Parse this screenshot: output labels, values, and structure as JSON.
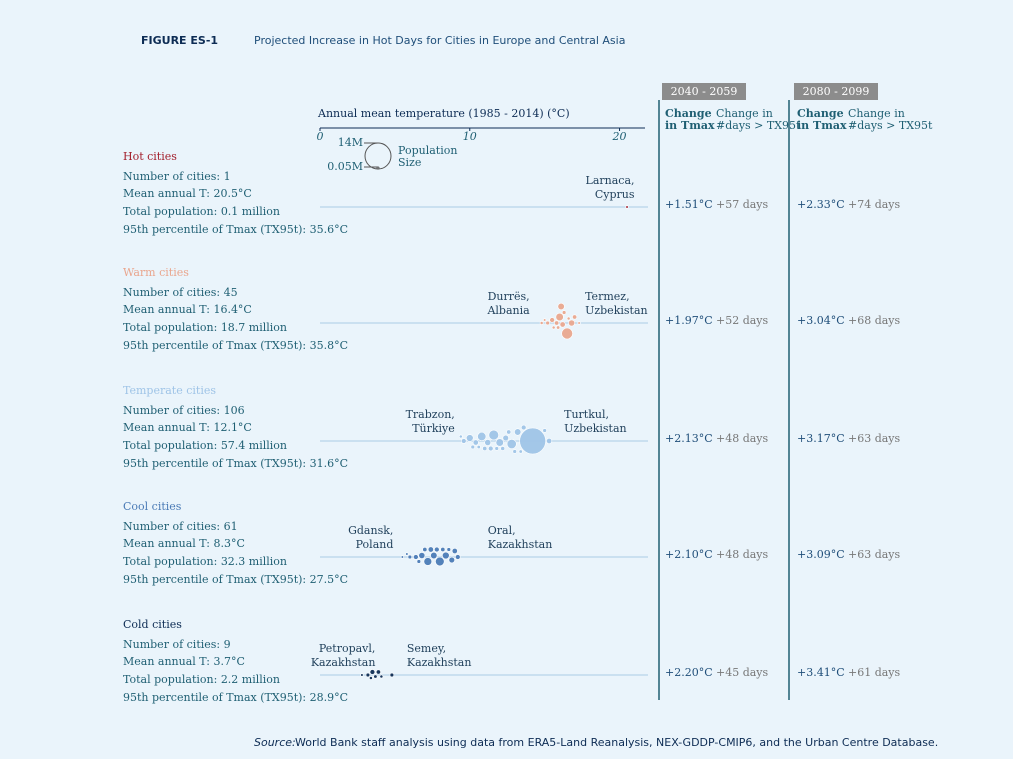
{
  "chart_data": {
    "type": "beeswarm",
    "title": "FIGURE ES-1",
    "subtitle": "Projected Increase in Hot Days for Cities in Europe and Central Asia",
    "x_label": "Annual mean temperature (1985 - 2014) (°C)",
    "xlim": [
      0,
      21.7
    ],
    "xticks": [
      0,
      10,
      20
    ],
    "size_legend": {
      "title": [
        "Population",
        "Size"
      ],
      "values": [
        14,
        0.05
      ],
      "labels": [
        "14M",
        "0.05M"
      ]
    },
    "periods": [
      "2040 - 2059",
      "2080 - 2099"
    ],
    "column_headers": [
      [
        "Change",
        "in Tmax"
      ],
      [
        "Change in",
        "#days > TX95t"
      ]
    ],
    "groups": [
      {
        "name": "Hot cities",
        "color": "#a3202d",
        "stats": [
          "Number of cities: 1",
          "Mean annual T: 20.5°C",
          "Total population: 0.1 million",
          "95th percentile of Tmax (TX95t): 35.6°C"
        ],
        "annotations": [
          {
            "label": [
              "Larnaca,",
              "Cyprus"
            ],
            "x": 21.0
          }
        ],
        "points": [
          {
            "x": 20.5,
            "size": 0.1
          }
        ],
        "changes": [
          [
            "+1.51°C",
            "+57 days"
          ],
          [
            "+2.33°C",
            "+74 days"
          ]
        ]
      },
      {
        "name": "Warm cities",
        "color": "#e9a68e",
        "stats": [
          "Number of cities: 45",
          "Mean annual T: 16.4°C",
          "Total population: 18.7 million",
          "95th percentile of Tmax (TX95t): 35.8°C"
        ],
        "annotations": [
          {
            "label": [
              "Durrës,",
              "Albania"
            ],
            "x": 14.0
          },
          {
            "label": [
              "Termez,",
              "Uzbekistan"
            ],
            "x": 17.7
          }
        ],
        "points": [
          {
            "x": 14.8,
            "size": 0.2
          },
          {
            "x": 15.2,
            "size": 0.3
          },
          {
            "x": 15.5,
            "size": 0.5
          },
          {
            "x": 15.8,
            "size": 0.4
          },
          {
            "x": 16.0,
            "size": 1.2
          },
          {
            "x": 16.2,
            "size": 0.6
          },
          {
            "x": 16.5,
            "size": 2.5
          },
          {
            "x": 16.8,
            "size": 0.8
          },
          {
            "x": 17.0,
            "size": 0.4
          },
          {
            "x": 15.0,
            "size": 0.15
          },
          {
            "x": 15.6,
            "size": 0.2
          },
          {
            "x": 16.3,
            "size": 0.3
          },
          {
            "x": 16.6,
            "size": 0.2
          },
          {
            "x": 17.3,
            "size": 0.1
          },
          {
            "x": 16.1,
            "size": 0.9
          },
          {
            "x": 15.9,
            "size": 0.25
          }
        ],
        "changes": [
          [
            "+1.97°C",
            "+52 days"
          ],
          [
            "+3.04°C",
            "+68 days"
          ]
        ]
      },
      {
        "name": "Temperate cities",
        "color": "#9fc4e7",
        "stats": [
          "Number of cities: 106",
          "Mean annual T: 12.1°C",
          "Total population: 57.4 million",
          "95th percentile of Tmax (TX95t): 31.6°C"
        ],
        "annotations": [
          {
            "label": [
              "Trabzon,",
              "Türkiye"
            ],
            "x": 9.0
          },
          {
            "label": [
              "Turtkul,",
              "Uzbekistan"
            ],
            "x": 16.3
          }
        ],
        "points": [
          {
            "x": 14.2,
            "size": 14
          },
          {
            "x": 9.6,
            "size": 0.5
          },
          {
            "x": 10.0,
            "size": 1.0
          },
          {
            "x": 10.4,
            "size": 0.6
          },
          {
            "x": 10.8,
            "size": 1.5
          },
          {
            "x": 11.2,
            "size": 0.8
          },
          {
            "x": 11.6,
            "size": 2.0
          },
          {
            "x": 12.0,
            "size": 1.2
          },
          {
            "x": 12.4,
            "size": 0.7
          },
          {
            "x": 12.8,
            "size": 1.8
          },
          {
            "x": 13.2,
            "size": 0.9
          },
          {
            "x": 13.6,
            "size": 0.5
          },
          {
            "x": 15.3,
            "size": 0.6
          },
          {
            "x": 10.2,
            "size": 0.3
          },
          {
            "x": 11.0,
            "size": 0.4
          },
          {
            "x": 11.8,
            "size": 0.3
          },
          {
            "x": 12.6,
            "size": 0.4
          },
          {
            "x": 13.0,
            "size": 0.3
          },
          {
            "x": 9.4,
            "size": 0.2
          },
          {
            "x": 10.6,
            "size": 0.25
          },
          {
            "x": 11.4,
            "size": 0.5
          },
          {
            "x": 12.2,
            "size": 0.35
          },
          {
            "x": 13.4,
            "size": 0.25
          },
          {
            "x": 15.0,
            "size": 0.3
          }
        ],
        "changes": [
          [
            "+2.13°C",
            "+48 days"
          ],
          [
            "+3.17°C",
            "+63 days"
          ]
        ]
      },
      {
        "name": "Cool cities",
        "color": "#4b7bb6",
        "stats": [
          "Number of cities: 61",
          "Mean annual T: 8.3°C",
          "Total population: 32.3 million",
          "95th percentile of Tmax (TX95t): 27.5°C"
        ],
        "annotations": [
          {
            "label": [
              "Gdansk,",
              "Poland"
            ],
            "x": 4.9
          },
          {
            "label": [
              "Oral,",
              "Kazakhstan"
            ],
            "x": 11.2
          }
        ],
        "points": [
          {
            "x": 5.5,
            "size": 0.1
          },
          {
            "x": 6.0,
            "size": 0.3
          },
          {
            "x": 6.4,
            "size": 0.5
          },
          {
            "x": 6.8,
            "size": 0.8
          },
          {
            "x": 7.2,
            "size": 1.3
          },
          {
            "x": 7.6,
            "size": 0.9
          },
          {
            "x": 8.0,
            "size": 1.6
          },
          {
            "x": 8.4,
            "size": 1.0
          },
          {
            "x": 8.8,
            "size": 0.7
          },
          {
            "x": 9.2,
            "size": 0.5
          },
          {
            "x": 6.6,
            "size": 0.3
          },
          {
            "x": 7.0,
            "size": 0.4
          },
          {
            "x": 7.4,
            "size": 0.6
          },
          {
            "x": 7.8,
            "size": 0.5
          },
          {
            "x": 8.2,
            "size": 0.4
          },
          {
            "x": 8.6,
            "size": 0.3
          },
          {
            "x": 9.0,
            "size": 0.6
          },
          {
            "x": 5.8,
            "size": 0.15
          }
        ],
        "changes": [
          [
            "+2.10°C",
            "+48 days"
          ],
          [
            "+3.09°C",
            "+63 days"
          ]
        ]
      },
      {
        "name": "Cold cities",
        "color": "#0d2c54",
        "stats": [
          "Number of cities: 9",
          "Mean annual T: 3.7°C",
          "Total population: 2.2 million",
          "95th percentile of Tmax (TX95t): 28.9°C"
        ],
        "annotations": [
          {
            "label": [
              "Petropavl,",
              "Kazakhstan"
            ],
            "x": 3.7
          },
          {
            "label": [
              "Semey,",
              "Kazakhstan"
            ],
            "x": 5.8
          }
        ],
        "points": [
          {
            "x": 2.8,
            "size": 0.15
          },
          {
            "x": 3.2,
            "size": 0.3
          },
          {
            "x": 3.5,
            "size": 0.5
          },
          {
            "x": 3.7,
            "size": 0.25
          },
          {
            "x": 3.9,
            "size": 0.4
          },
          {
            "x": 3.4,
            "size": 0.2
          },
          {
            "x": 4.1,
            "size": 0.2
          },
          {
            "x": 4.8,
            "size": 0.3
          }
        ],
        "changes": [
          [
            "+2.20°C",
            "+45 days"
          ],
          [
            "+3.41°C",
            "+61 days"
          ]
        ]
      }
    ],
    "source_label": "Source:",
    "source": "World Bank staff analysis using data from ERA5-Land Reanalysis, NEX-GDDP-CMIP6, and the Urban Centre Database."
  }
}
